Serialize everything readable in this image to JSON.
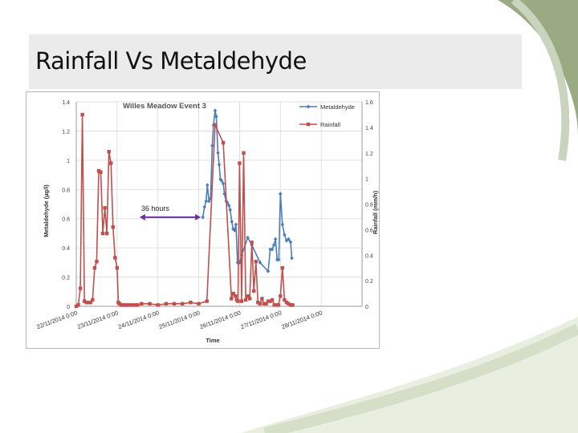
{
  "slide": {
    "title": "Rainfall Vs Metaldehyde"
  },
  "chart_data": {
    "type": "line",
    "title": "Willes Meadow Event 3",
    "xlabel": "Time",
    "ylabel": "Metaldehyde (µg/l)",
    "y2label": "Rainfall (mm/h)",
    "ylim": [
      0,
      1.4
    ],
    "y2lim": [
      0,
      1.6
    ],
    "yticks": [
      "0",
      "0.2",
      "0.4",
      "0.6",
      "0.8",
      "1",
      "1.2",
      "1.4"
    ],
    "y2ticks": [
      "0",
      "0.2",
      "0.4",
      "0.6",
      "0.8",
      "1",
      "1.2",
      "1.4",
      "1.6"
    ],
    "xticks": [
      "22/11/2014 0:00",
      "23/11/2014 0:00",
      "24/11/2014 0:00",
      "25/11/2014 0:00",
      "26/11/2014 0:00",
      "27/11/2014 0:00",
      "28/11/2014 0:00"
    ],
    "xlim_days": [
      0,
      7
    ],
    "grid": true,
    "legend_position": "top-right",
    "annotation": "36 hours",
    "annotation_span_days": [
      1.55,
      3.05
    ],
    "annotation_y": 0.61,
    "series": [
      {
        "name": "Metaldehyde",
        "axis": "left",
        "color": "#4a7ebb",
        "x": [
          3.1,
          3.14,
          3.18,
          3.21,
          3.25,
          3.29,
          3.33,
          3.36,
          3.4,
          3.43,
          3.47,
          3.5,
          3.53,
          3.56,
          3.6,
          3.63,
          3.67,
          3.7,
          3.74,
          3.77,
          3.81,
          3.84,
          3.88,
          3.91,
          3.95,
          4.0,
          4.05,
          4.2,
          4.3,
          4.5,
          4.7,
          4.75,
          4.8,
          4.84,
          4.88,
          4.92,
          4.96,
          5.0,
          5.05,
          5.1,
          5.15,
          5.2,
          5.25,
          5.28
        ],
        "y": [
          0.61,
          0.68,
          0.72,
          0.83,
          0.72,
          0.74,
          1.1,
          1.24,
          1.34,
          1.3,
          1.05,
          0.97,
          0.87,
          0.86,
          0.84,
          0.77,
          0.72,
          0.71,
          0.69,
          0.66,
          0.58,
          0.53,
          0.52,
          0.56,
          0.3,
          0.3,
          0.35,
          0.47,
          0.42,
          0.3,
          0.24,
          0.39,
          0.39,
          0.42,
          0.46,
          0.32,
          0.32,
          0.77,
          0.56,
          0.49,
          0.45,
          0.46,
          0.44,
          0.33
        ]
      },
      {
        "name": "Rainfall",
        "axis": "right",
        "color": "#c0504d",
        "x": [
          0,
          0.05,
          0.1,
          0.15,
          0.2,
          0.25,
          0.3,
          0.35,
          0.4,
          0.45,
          0.5,
          0.55,
          0.6,
          0.65,
          0.7,
          0.75,
          0.8,
          0.85,
          0.9,
          0.95,
          1.0,
          1.03,
          1.06,
          1.1,
          1.15,
          1.2,
          1.25,
          1.3,
          1.35,
          1.4,
          1.45,
          1.5,
          1.6,
          1.8,
          2.0,
          2.2,
          2.4,
          2.6,
          2.8,
          3.0,
          3.2,
          3.4,
          3.6,
          3.8,
          3.85,
          3.9,
          3.93,
          3.96,
          4.0,
          4.05,
          4.1,
          4.15,
          4.2,
          4.25,
          4.3,
          4.35,
          4.4,
          4.45,
          4.5,
          4.55,
          4.6,
          4.65,
          4.7,
          4.75,
          4.8,
          4.85,
          4.9,
          4.95,
          5.0,
          5.05,
          5.1,
          5.15,
          5.2,
          5.25,
          5.3
        ],
        "y": [
          0.0,
          0.01,
          0.14,
          1.5,
          0.04,
          0.03,
          0.03,
          0.03,
          0.05,
          0.3,
          0.35,
          1.06,
          1.05,
          0.57,
          0.77,
          0.57,
          1.21,
          1.12,
          0.62,
          0.38,
          0.3,
          0.03,
          0.02,
          0.01,
          0.01,
          0.01,
          0.01,
          0.01,
          0.01,
          0.01,
          0.01,
          0.01,
          0.02,
          0.02,
          0.01,
          0.02,
          0.02,
          0.02,
          0.03,
          0.02,
          0.04,
          1.42,
          1.28,
          0.06,
          0.1,
          0.08,
          0.05,
          0.04,
          1.12,
          0.04,
          1.2,
          0.05,
          0.08,
          0.06,
          0.5,
          0.12,
          0.35,
          0.03,
          0.02,
          0.06,
          0.02,
          0.02,
          0.04,
          0.04,
          0.05,
          0.01,
          0.01,
          0.01,
          0.08,
          0.3,
          0.05,
          0.03,
          0.02,
          0.01,
          0.01
        ]
      }
    ]
  }
}
